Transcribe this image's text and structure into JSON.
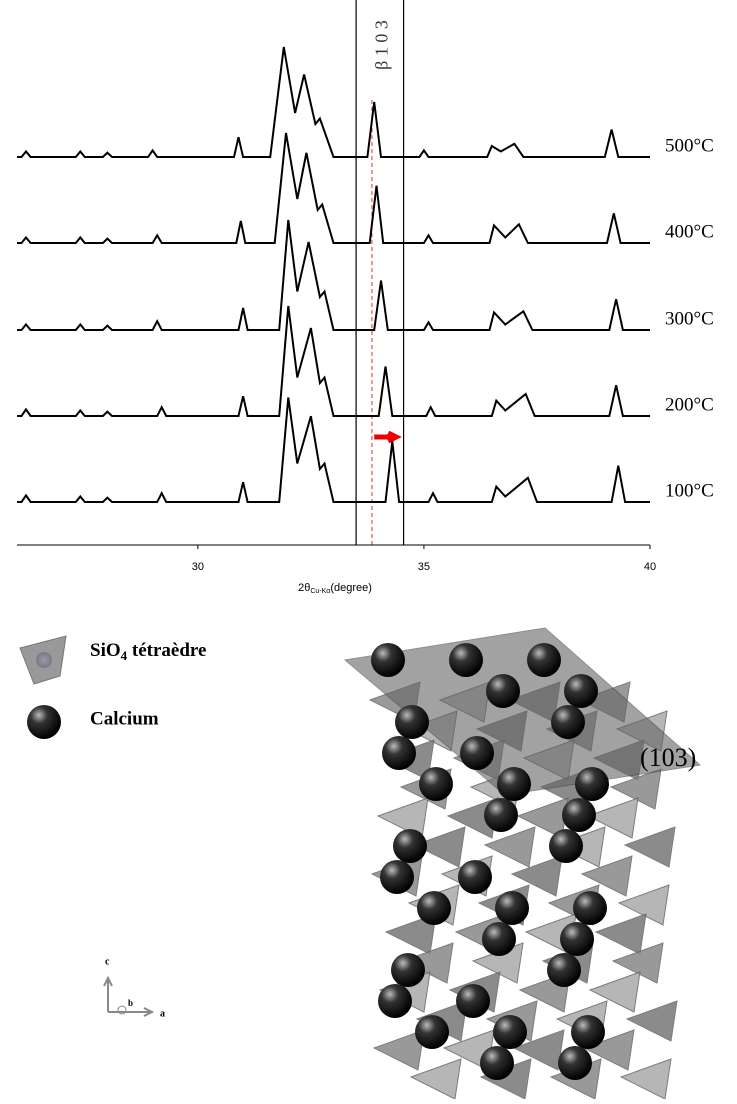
{
  "chart_data": {
    "type": "line",
    "xlim": [
      26,
      40
    ],
    "xticks": [
      30,
      35,
      40
    ],
    "x_label_parts": [
      "2θ",
      "Cu-Kα",
      "(degree)"
    ],
    "annotation": "β 1 0 3",
    "series": [
      {
        "name": "100°C",
        "color": "#000000",
        "x": [
          26,
          26.1,
          26.2,
          26.3,
          27.3,
          27.4,
          27.5,
          27.9,
          28,
          28.1,
          29.1,
          29.2,
          29.3,
          30.9,
          31,
          31.1,
          31.8,
          32,
          32.2,
          32.5,
          32.7,
          32.8,
          33,
          34.15,
          34.3,
          34.45,
          35.1,
          35.2,
          35.3,
          36.5,
          36.6,
          36.8,
          37.3,
          37.5,
          39.15,
          39.3,
          39.45,
          40
        ],
        "values": [
          0,
          0,
          6,
          0,
          0,
          5,
          0,
          0,
          4,
          0,
          0,
          8,
          0,
          0,
          18,
          0,
          0,
          95,
          35,
          78,
          30,
          35,
          0,
          0,
          55,
          0,
          0,
          8,
          0,
          0,
          14,
          5,
          22,
          0,
          0,
          33,
          0,
          0
        ]
      },
      {
        "name": "200°C",
        "color": "#000000",
        "x": [
          26,
          26.1,
          26.2,
          26.3,
          27.3,
          27.4,
          27.5,
          27.9,
          28,
          28.1,
          29.1,
          29.2,
          29.3,
          30.9,
          31,
          31.1,
          31.8,
          32,
          32.2,
          32.5,
          32.7,
          32.8,
          33,
          34,
          34.15,
          34.3,
          35.05,
          35.15,
          35.25,
          36.5,
          36.6,
          36.8,
          37.25,
          37.45,
          39.1,
          39.25,
          39.4,
          40
        ],
        "values": [
          0,
          0,
          6,
          0,
          0,
          5,
          0,
          0,
          4,
          0,
          0,
          8,
          0,
          0,
          18,
          0,
          0,
          100,
          35,
          80,
          30,
          35,
          0,
          0,
          45,
          0,
          0,
          8,
          0,
          0,
          14,
          5,
          20,
          0,
          0,
          28,
          0,
          0
        ]
      },
      {
        "name": "300°C",
        "color": "#000000",
        "x": [
          26,
          26.1,
          26.2,
          26.3,
          27.3,
          27.4,
          27.5,
          27.9,
          28,
          28.1,
          29,
          29.1,
          29.2,
          30.9,
          31,
          31.1,
          31.8,
          32,
          32.2,
          32.45,
          32.7,
          32.8,
          33,
          33.9,
          34.05,
          34.2,
          35,
          35.1,
          35.2,
          36.45,
          36.55,
          36.8,
          37.2,
          37.4,
          39.1,
          39.25,
          39.4,
          40
        ],
        "values": [
          0,
          0,
          5,
          0,
          0,
          5,
          0,
          0,
          4,
          0,
          0,
          8,
          0,
          0,
          20,
          0,
          0,
          100,
          35,
          80,
          30,
          35,
          0,
          0,
          45,
          0,
          0,
          7,
          0,
          0,
          16,
          5,
          17,
          0,
          0,
          28,
          0,
          0
        ]
      },
      {
        "name": "400°C",
        "color": "#000000",
        "x": [
          26,
          26.1,
          26.2,
          26.3,
          27.3,
          27.4,
          27.5,
          27.9,
          28,
          28.1,
          29,
          29.1,
          29.2,
          30.85,
          30.95,
          31.05,
          31.7,
          31.95,
          32.2,
          32.4,
          32.65,
          32.75,
          33,
          33.8,
          33.95,
          34.1,
          35,
          35.1,
          35.2,
          36.45,
          36.55,
          36.8,
          37.1,
          37.3,
          39.05,
          39.2,
          39.35,
          40
        ],
        "values": [
          0,
          0,
          5,
          0,
          0,
          5,
          0,
          0,
          4,
          0,
          0,
          7,
          0,
          0,
          20,
          0,
          0,
          100,
          40,
          82,
          30,
          35,
          0,
          0,
          52,
          0,
          0,
          7,
          0,
          0,
          16,
          5,
          17,
          0,
          0,
          27,
          0,
          0
        ]
      },
      {
        "name": "500°C",
        "color": "#000000",
        "x": [
          26,
          26.1,
          26.2,
          26.3,
          27.3,
          27.4,
          27.5,
          27.9,
          28,
          28.1,
          28.9,
          29,
          29.1,
          30.8,
          30.9,
          31,
          31.6,
          31.9,
          32.15,
          32.35,
          32.6,
          32.7,
          33,
          33.75,
          33.9,
          34.05,
          34.9,
          35,
          35.1,
          36.4,
          36.5,
          36.7,
          37,
          37.2,
          39,
          39.15,
          39.3,
          40
        ],
        "values": [
          0,
          0,
          5,
          0,
          0,
          5,
          0,
          0,
          4,
          0,
          0,
          6,
          0,
          0,
          18,
          0,
          0,
          100,
          40,
          75,
          30,
          35,
          0,
          0,
          50,
          0,
          0,
          6,
          0,
          0,
          10,
          5,
          12,
          0,
          0,
          25,
          0,
          0
        ]
      }
    ]
  },
  "structure": {
    "legend": [
      {
        "label_parts": [
          "SiO",
          "4",
          " tétraèdre"
        ]
      },
      {
        "label": "Calcium"
      }
    ],
    "plane": "(103)",
    "axes": [
      "c",
      "b",
      "a"
    ]
  }
}
